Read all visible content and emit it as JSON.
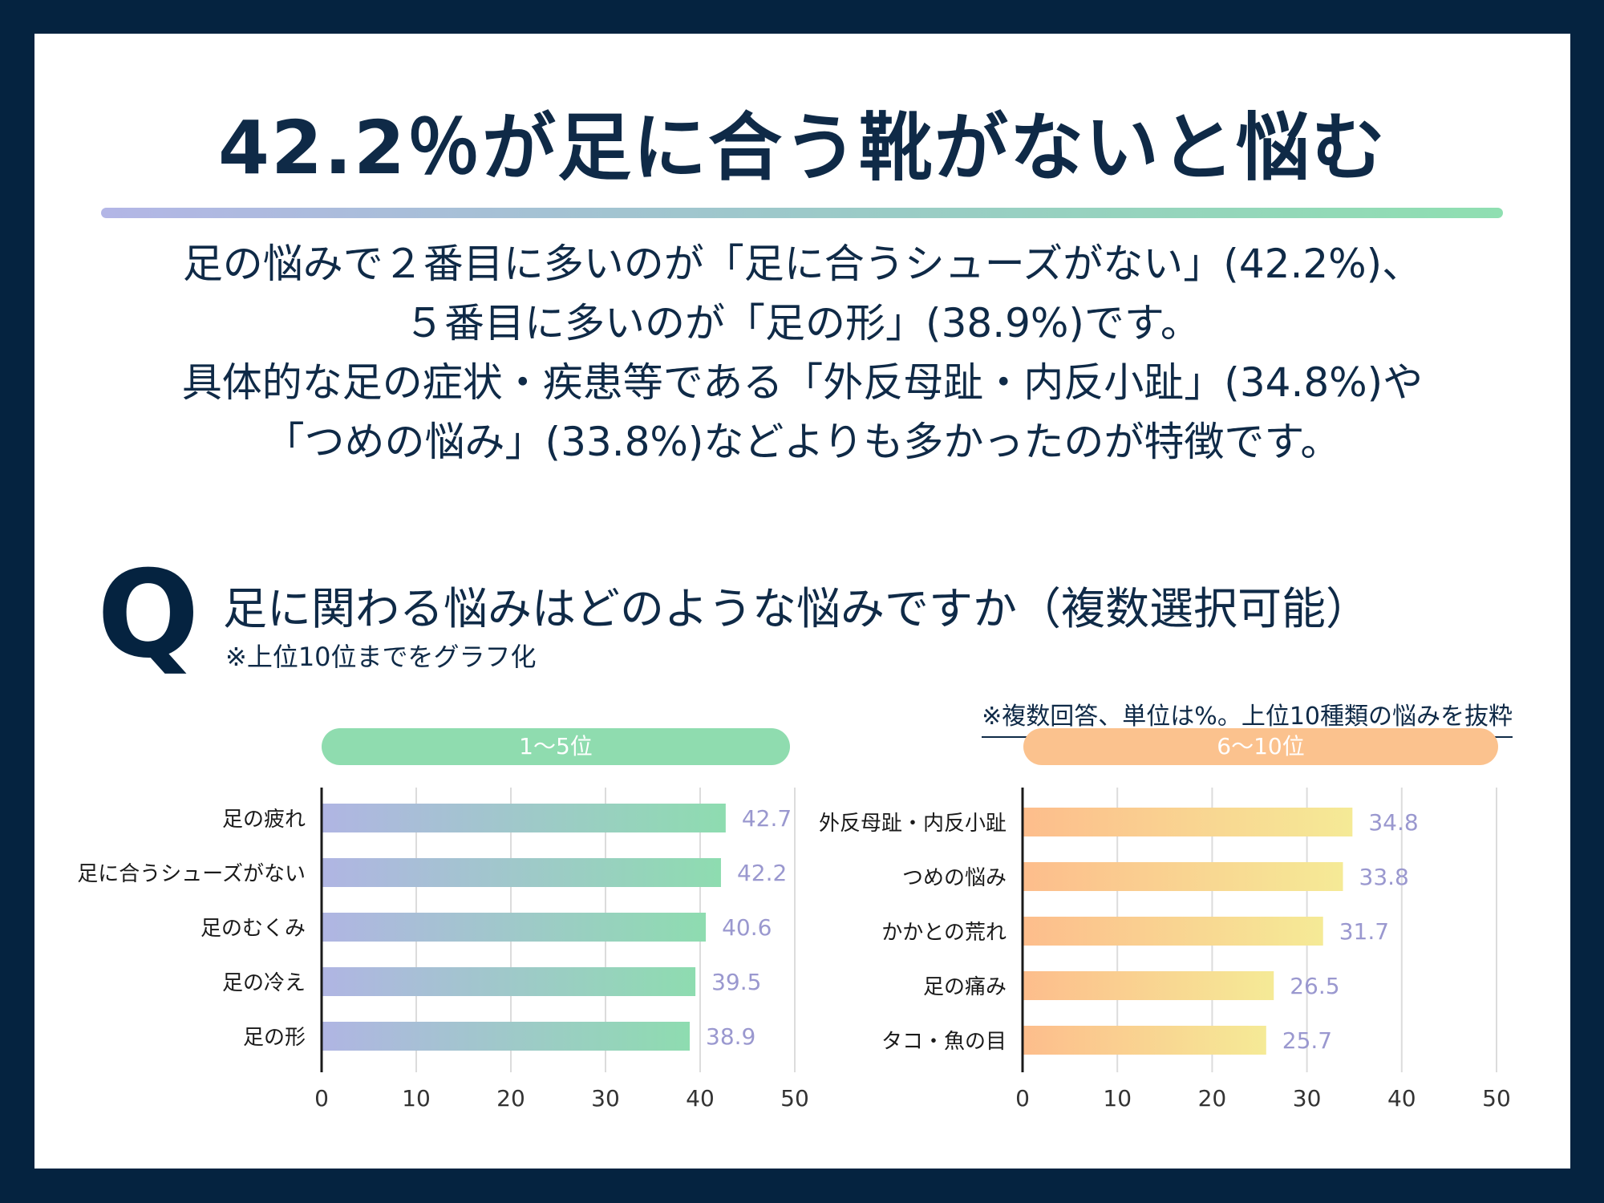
{
  "title": "42.2％が足に合う靴がないと悩む",
  "summary": {
    "line1": "足の悩みで２番目に多いのが「足に合うシューズがない」(42.2%)、",
    "line2": "５番目に多いのが「足の形」(38.9%)です。",
    "line3": "具体的な足の症状・疾患等である「外反母趾・内反小趾」(34.8%)や",
    "line4": "「つめの悩み」(33.8%)などよりも多かったのが特徴です。"
  },
  "question": {
    "mark": "Q",
    "text": "足に関わる悩みはどのような悩みですか（複数選択可能）",
    "note": "※上位10位までをグラフ化"
  },
  "source_note": "※複数回答、単位は%。上位10種類の悩みを抜粋",
  "colors": {
    "left_bar_start": "#b0b5e3",
    "left_bar_end": "#8edcb0",
    "right_bar_start": "#fdbd8c",
    "right_bar_end": "#f5ea96",
    "value_label": "#9a98cf",
    "axis": "#1a1a1a",
    "grid": "#dcdcdc"
  },
  "chart_data": [
    {
      "type": "bar",
      "orientation": "horizontal",
      "title": "1～5位",
      "categories": [
        "足の疲れ",
        "足に合うシューズがない",
        "足のむくみ",
        "足の冷え",
        "足の形"
      ],
      "values": [
        42.7,
        42.2,
        40.6,
        39.5,
        38.9
      ],
      "value_labels": [
        "42.7",
        "42.2",
        "40.6",
        "39.5",
        "38.9"
      ],
      "xlim": [
        0,
        50
      ],
      "xticks": [
        "0",
        "10",
        "20",
        "30",
        "40",
        "50"
      ],
      "xlabel": "",
      "ylabel": "",
      "grid": true
    },
    {
      "type": "bar",
      "orientation": "horizontal",
      "title": "6～10位",
      "categories": [
        "外反母趾・内反小趾",
        "つめの悩み",
        "かかとの荒れ",
        "足の痛み",
        "タコ・魚の目"
      ],
      "values": [
        34.8,
        33.8,
        31.7,
        26.5,
        25.7
      ],
      "value_labels": [
        "34.8",
        "33.8",
        "31.7",
        "26.5",
        "25.7"
      ],
      "xlim": [
        0,
        50
      ],
      "xticks": [
        "0",
        "10",
        "20",
        "30",
        "40",
        "50"
      ],
      "xlabel": "",
      "ylabel": "",
      "grid": true
    }
  ]
}
